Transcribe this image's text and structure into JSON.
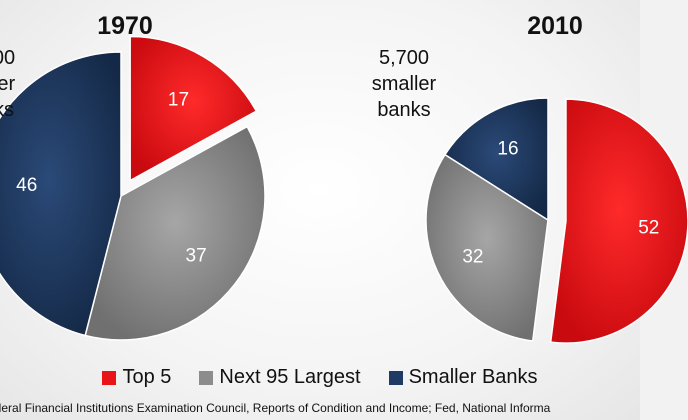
{
  "chart_data": [
    {
      "type": "pie",
      "title": "1970",
      "categories": [
        "Top 5",
        "Next 95 Largest",
        "Smaller Banks"
      ],
      "values": [
        17,
        37,
        46
      ],
      "callout": [
        "00",
        "ler",
        "ks"
      ]
    },
    {
      "type": "pie",
      "title": "2010",
      "categories": [
        "Top 5",
        "Next 95 Largest",
        "Smaller Banks"
      ],
      "values": [
        52,
        32,
        16
      ],
      "callout": [
        "5,700",
        "smaller",
        "banks"
      ]
    }
  ],
  "legend": {
    "placement": "bottom",
    "items": [
      {
        "label": "Top 5",
        "color": "#e8141a"
      },
      {
        "label": "Next 95 Largest",
        "color": "#8c8c8c"
      },
      {
        "label": "Smaller Banks",
        "color": "#1f3a63"
      }
    ]
  },
  "source_text": "ederal Financial Institutions Examination Council, Reports of Condition and Income; Fed, National Informa"
}
